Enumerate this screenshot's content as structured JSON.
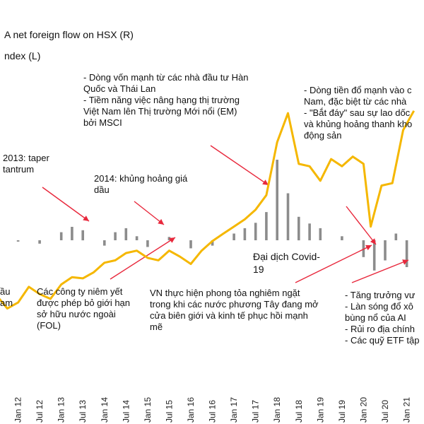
{
  "chart_data": {
    "type": "line",
    "legend": [
      {
        "label": "A net foreign flow on HSX (R)",
        "type": "bar",
        "color": "#8c8c8c"
      },
      {
        "label": "ndex (L)",
        "type": "line",
        "color": "#f5b700"
      }
    ],
    "x_tick_labels": [
      "Jan 12",
      "Jul 12",
      "Jan 13",
      "Jul 13",
      "Jan 14",
      "Jul 14",
      "Jan 15",
      "Jul 15",
      "Jan 16",
      "Jul 16",
      "Jan 17",
      "Jul 17",
      "Jan 18",
      "Jul 18",
      "Jan 19",
      "Jul 19",
      "Jan 20",
      "Jul 20",
      "Jan 21"
    ],
    "series": [
      {
        "name": "ndex (L)",
        "type": "line",
        "x": [
          "2011-07",
          "2011-10",
          "2012-01",
          "2012-04",
          "2012-07",
          "2012-10",
          "2013-01",
          "2013-04",
          "2013-07",
          "2013-10",
          "2014-01",
          "2014-04",
          "2014-07",
          "2014-10",
          "2015-01",
          "2015-04",
          "2015-07",
          "2015-10",
          "2016-01",
          "2016-04",
          "2016-07",
          "2016-10",
          "2017-01",
          "2017-04",
          "2017-07",
          "2017-10",
          "2018-01",
          "2018-04",
          "2018-07",
          "2018-10",
          "2019-01",
          "2019-04",
          "2019-07",
          "2019-10",
          "2020-01",
          "2020-03",
          "2020-06",
          "2020-09",
          "2020-12",
          "2021-03"
        ],
        "values": [
          415,
          360,
          385,
          450,
          420,
          400,
          460,
          490,
          485,
          510,
          550,
          560,
          590,
          600,
          570,
          560,
          600,
          575,
          545,
          600,
          640,
          670,
          700,
          730,
          770,
          830,
          1050,
          1170,
          960,
          950,
          890,
          980,
          950,
          990,
          960,
          700,
          870,
          880,
          1100,
          1180
        ]
      },
      {
        "name": "A net foreign flow on HSX (R)",
        "type": "bar",
        "x": [
          "2012-01",
          "2012-07",
          "2013-01",
          "2013-04",
          "2013-07",
          "2014-01",
          "2014-04",
          "2014-07",
          "2014-10",
          "2015-01",
          "2015-07",
          "2016-01",
          "2016-07",
          "2017-01",
          "2017-04",
          "2017-07",
          "2017-10",
          "2018-01",
          "2018-04",
          "2018-07",
          "2018-10",
          "2019-01",
          "2019-07",
          "2020-01",
          "2020-04",
          "2020-07",
          "2020-10",
          "2021-01"
        ],
        "values": [
          -2,
          -5,
          12,
          20,
          15,
          -8,
          12,
          18,
          6,
          -10,
          5,
          -12,
          -8,
          10,
          18,
          26,
          42,
          120,
          70,
          35,
          25,
          18,
          6,
          -25,
          -45,
          -30,
          10,
          -40
        ]
      }
    ],
    "annotations": [
      [
        "2013: taper",
        "tantrum"
      ],
      [
        "2014: khủng hoảng giá",
        "dầu"
      ],
      [
        "- Dòng vốn mạnh từ các nhà đầu tư Hàn",
        "  Quốc và Thái Lan",
        "- Tiềm năng việc nâng hạng thị trường",
        "  Việt Nam lên Thị trường Mới nổi (EM)",
        "  bởi MSCI"
      ],
      [
        "- Dòng tiền đổ mạnh vào c",
        "  Nam, đặc biệt từ các nhà",
        "- \"Bắt đáy\" sau sự lao dốc",
        "  và khủng hoảng thanh kho",
        "  động sản"
      ],
      [
        "Đại dịch Covid-",
        "19"
      ],
      [
        "Các công ty niêm yết",
        "được phép bỏ giới hạn",
        "sở hữu nước ngoài",
        "(FOL)"
      ],
      [
        "VN thực hiện phong tỏa nghiêm ngặt",
        "trong khi các nước phương Tây đang mở",
        "cửa biên giới và kinh tế phục hồi mạnh",
        "mẽ"
      ],
      [
        "- Tăng trưởng vư",
        "- Làn sóng đổ xô",
        "  bùng nổ của AI",
        "- Rủi ro địa chính",
        "- Các quỹ ETF tập"
      ],
      [
        "ầu",
        "am"
      ]
    ]
  }
}
